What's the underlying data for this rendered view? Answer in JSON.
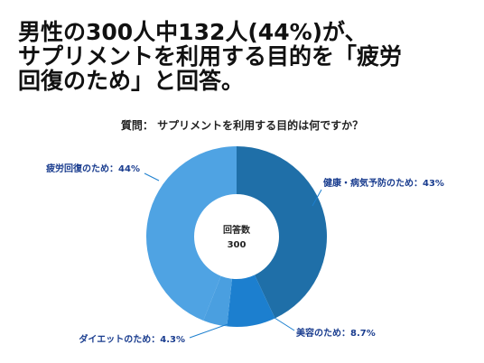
{
  "headline": {
    "line1": "男性の300人中132人(44%)が、",
    "line2": "サプリメントを利用する目的を「疲労",
    "line3": "回復のため」と回答。"
  },
  "chart_data": {
    "type": "pie",
    "question": "質問： サプリメントを利用する目的は何ですか？",
    "center_label": "回答数",
    "center_value": "300",
    "slices": [
      {
        "label": "健康・病気予防のため：43%",
        "value": 43,
        "color": "#1f6fa8"
      },
      {
        "label": "美容のため：8.7%",
        "value": 8.7,
        "color": "#1c7fcf"
      },
      {
        "label": "ダイエットのため：4.3%",
        "value": 4.3,
        "color": "#4a9fe0"
      },
      {
        "label": "疲労回復のため：44%",
        "value": 44,
        "color": "#4fa3e3"
      }
    ],
    "label_color": "#1a3d8f"
  }
}
